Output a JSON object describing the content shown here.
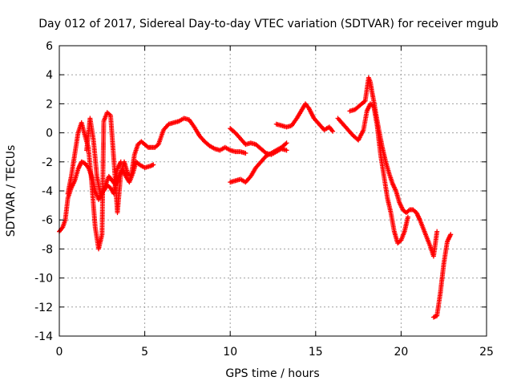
{
  "chart_data": {
    "type": "scatter",
    "title": "Day 012 of 2017, Sidereal Day-to-day VTEC variation (SDTVAR) for receiver mgub",
    "xlabel": "GPS time / hours",
    "ylabel": "SDTVAR / TECUs",
    "xlim": [
      0,
      25
    ],
    "ylim": [
      -14,
      6
    ],
    "xticks": [
      "0",
      "5",
      "10",
      "15",
      "20",
      "25"
    ],
    "yticks": [
      "-14",
      "-12",
      "-10",
      "-8",
      "-6",
      "-4",
      "-2",
      "0",
      "2",
      "4",
      "6"
    ],
    "grid": true,
    "marker": "+",
    "color": "#ff0000",
    "series": [
      {
        "x": [
          0.0,
          0.2,
          0.35,
          0.5,
          0.7,
          0.9,
          1.1,
          1.3,
          1.5,
          1.7,
          1.9,
          2.1,
          2.3,
          2.5,
          2.7,
          2.9,
          3.1,
          3.3,
          3.5,
          3.7,
          3.9,
          4.1,
          4.3,
          4.5,
          4.7,
          5.0,
          5.3,
          5.5
        ],
        "y": [
          -6.8,
          -6.5,
          -6.0,
          -4.5,
          -3.8,
          -3.3,
          -2.5,
          -2.0,
          -2.1,
          -2.4,
          -3.0,
          -4.0,
          -4.6,
          -4.2,
          -3.6,
          -3.0,
          -3.3,
          -3.6,
          -3.0,
          -2.5,
          -3.0,
          -3.4,
          -2.8,
          -2.0,
          -2.2,
          -2.4,
          -2.3,
          -2.2
        ]
      },
      {
        "x": [
          0.5,
          0.7,
          0.9,
          1.1,
          1.3,
          1.5,
          1.7,
          1.9,
          2.1,
          2.3,
          2.5,
          2.6,
          2.8,
          3.0,
          3.2,
          3.4,
          3.6,
          3.8,
          4.0,
          4.2,
          4.4,
          4.6,
          4.8,
          5.0,
          5.2,
          5.4,
          5.6,
          5.8,
          6.1,
          6.4,
          6.7,
          7.0,
          7.3,
          7.6,
          7.9,
          8.2,
          8.5,
          8.8,
          9.1,
          9.4,
          9.7,
          10.0,
          10.3,
          10.6,
          10.9
        ],
        "y": [
          -4.2,
          -3.0,
          -1.5,
          0.0,
          0.7,
          -0.2,
          -1.0,
          -3.5,
          -6.5,
          -8.0,
          -7.0,
          0.8,
          1.4,
          1.2,
          -2.0,
          -5.5,
          -2.8,
          -2.0,
          -2.8,
          -3.0,
          -1.5,
          -0.8,
          -0.6,
          -0.8,
          -1.0,
          -1.0,
          -1.0,
          -0.8,
          0.2,
          0.6,
          0.7,
          0.8,
          1.0,
          0.9,
          0.4,
          -0.2,
          -0.6,
          -0.9,
          -1.1,
          -1.2,
          -1.0,
          -1.2,
          -1.3,
          -1.3,
          -1.4
        ]
      },
      {
        "x": [
          1.6,
          1.8,
          2.0,
          2.2,
          2.4,
          2.6,
          2.8,
          3.0,
          3.2,
          3.4,
          3.6
        ],
        "y": [
          -1.2,
          1.0,
          -0.5,
          -3.0,
          -4.2,
          -4.0,
          -3.6,
          -3.8,
          -4.2,
          -2.5,
          -2.0
        ]
      },
      {
        "x": [
          10.0,
          10.3,
          10.6,
          10.9,
          11.2,
          11.5,
          11.8,
          12.1,
          12.4,
          12.7,
          13.0,
          13.3
        ],
        "y": [
          -3.4,
          -3.3,
          -3.2,
          -3.4,
          -3.0,
          -2.4,
          -2.0,
          -1.6,
          -1.4,
          -1.2,
          -1.0,
          -0.7
        ]
      },
      {
        "x": [
          10.0,
          10.3,
          10.6,
          10.9,
          11.2,
          11.5,
          11.8,
          12.1,
          12.4,
          12.7,
          13.0,
          13.3
        ],
        "y": [
          0.3,
          0.0,
          -0.4,
          -0.8,
          -0.7,
          -0.8,
          -1.1,
          -1.4,
          -1.5,
          -1.3,
          -1.1,
          -1.2
        ]
      },
      {
        "x": [
          12.7,
          13.0,
          13.3,
          13.6,
          13.9,
          14.2,
          14.4,
          14.6,
          14.9,
          15.2,
          15.5,
          15.8,
          16.0
        ],
        "y": [
          0.6,
          0.5,
          0.4,
          0.5,
          1.0,
          1.6,
          2.0,
          1.7,
          1.0,
          0.6,
          0.2,
          0.4,
          0.1
        ]
      },
      {
        "x": [
          16.3,
          16.6,
          16.9,
          17.2,
          17.5,
          17.8,
          18.0,
          18.2,
          18.4,
          18.6,
          18.8,
          19.0,
          19.2,
          19.4,
          19.6,
          19.8,
          20.0,
          20.2,
          20.4
        ],
        "y": [
          1.0,
          0.6,
          0.2,
          -0.2,
          -0.5,
          0.2,
          1.5,
          2.0,
          1.8,
          0.5,
          -1.5,
          -3.0,
          -4.5,
          -5.5,
          -6.8,
          -7.6,
          -7.4,
          -6.8,
          -5.8
        ]
      },
      {
        "x": [
          17.0,
          17.3,
          17.6,
          17.9,
          18.1,
          18.2,
          18.3,
          18.4,
          18.5,
          18.7,
          18.9,
          19.1,
          19.3,
          19.5,
          19.7,
          19.9,
          20.1,
          20.3,
          20.5,
          20.7,
          20.9,
          21.1,
          21.3,
          21.5,
          21.7,
          21.9,
          22.1
        ],
        "y": [
          1.5,
          1.6,
          1.9,
          2.2,
          3.8,
          3.5,
          2.8,
          2.2,
          1.5,
          0.2,
          -1.0,
          -2.0,
          -2.8,
          -3.5,
          -4.0,
          -4.8,
          -5.3,
          -5.5,
          -5.3,
          -5.3,
          -5.5,
          -6.0,
          -6.6,
          -7.2,
          -7.8,
          -8.5,
          -6.8
        ]
      },
      {
        "x": [
          21.9,
          22.1,
          22.3,
          22.5,
          22.7,
          22.9
        ],
        "y": [
          -12.7,
          -12.6,
          -11.0,
          -9.0,
          -7.5,
          -7.0
        ]
      }
    ]
  }
}
